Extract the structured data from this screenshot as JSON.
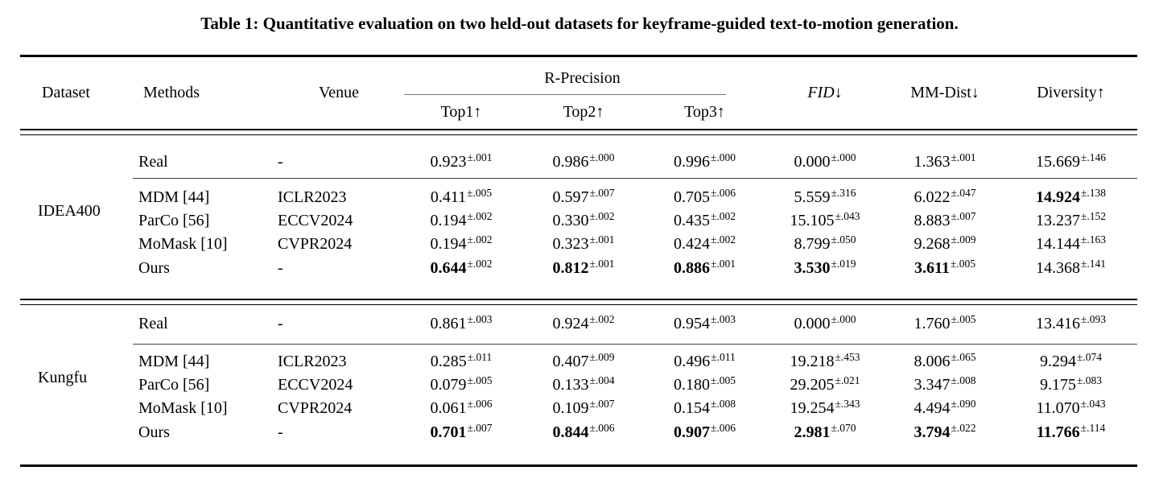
{
  "title": "Table 1: Quantitative evaluation on two held-out datasets for keyframe-guided text-to-motion generation.",
  "header": {
    "dataset": "Dataset",
    "methods": "Methods",
    "venue": "Venue",
    "r_precision": "R-Precision",
    "top1": "Top1↑",
    "top2": "Top2↑",
    "top3": "Top3↑",
    "fid_name": "FID",
    "fid_arrow": "↓",
    "mm_dist": "MM-Dist↓",
    "diversity": "Diversity↑"
  },
  "sections": [
    {
      "dataset": "IDEA400",
      "rows": [
        {
          "method": "Real",
          "venue": "-",
          "values": [
            {
              "v": "0.923",
              "pm": "±.001"
            },
            {
              "v": "0.986",
              "pm": "±.000"
            },
            {
              "v": "0.996",
              "pm": "±.000"
            },
            {
              "v": "0.000",
              "pm": "±.000"
            },
            {
              "v": "1.363",
              "pm": "±.001"
            },
            {
              "v": "15.669",
              "pm": "±.146"
            }
          ]
        },
        {
          "method": "MDM [44]",
          "venue": "ICLR2023",
          "values": [
            {
              "v": "0.411",
              "pm": "±.005"
            },
            {
              "v": "0.597",
              "pm": "±.007"
            },
            {
              "v": "0.705",
              "pm": "±.006"
            },
            {
              "v": "5.559",
              "pm": "±.316"
            },
            {
              "v": "6.022",
              "pm": "±.047"
            },
            {
              "v": "14.924",
              "pm": "±.138",
              "bold": true
            }
          ]
        },
        {
          "method": "ParCo [56]",
          "venue": "ECCV2024",
          "values": [
            {
              "v": "0.194",
              "pm": "±.002"
            },
            {
              "v": "0.330",
              "pm": "±.002"
            },
            {
              "v": "0.435",
              "pm": "±.002"
            },
            {
              "v": "15.105",
              "pm": "±.043"
            },
            {
              "v": "8.883",
              "pm": "±.007"
            },
            {
              "v": "13.237",
              "pm": "±.152"
            }
          ]
        },
        {
          "method": "MoMask [10]",
          "venue": "CVPR2024",
          "values": [
            {
              "v": "0.194",
              "pm": "±.002"
            },
            {
              "v": "0.323",
              "pm": "±.001"
            },
            {
              "v": "0.424",
              "pm": "±.002"
            },
            {
              "v": "8.799",
              "pm": "±.050"
            },
            {
              "v": "9.268",
              "pm": "±.009"
            },
            {
              "v": "14.144",
              "pm": "±.163"
            }
          ]
        },
        {
          "method": "Ours",
          "venue": "-",
          "values": [
            {
              "v": "0.644",
              "pm": "±.002",
              "bold": true
            },
            {
              "v": "0.812",
              "pm": "±.001",
              "bold": true
            },
            {
              "v": "0.886",
              "pm": "±.001",
              "bold": true
            },
            {
              "v": "3.530",
              "pm": "±.019",
              "bold": true
            },
            {
              "v": "3.611",
              "pm": "±.005",
              "bold": true
            },
            {
              "v": "14.368",
              "pm": "±.141"
            }
          ]
        }
      ]
    },
    {
      "dataset": "Kungfu",
      "rows": [
        {
          "method": "Real",
          "venue": "-",
          "values": [
            {
              "v": "0.861",
              "pm": "±.003"
            },
            {
              "v": "0.924",
              "pm": "±.002"
            },
            {
              "v": "0.954",
              "pm": "±.003"
            },
            {
              "v": "0.000",
              "pm": "±.000"
            },
            {
              "v": "1.760",
              "pm": "±.005"
            },
            {
              "v": "13.416",
              "pm": "±.093"
            }
          ]
        },
        {
          "method": "MDM [44]",
          "venue": "ICLR2023",
          "values": [
            {
              "v": "0.285",
              "pm": "±.011"
            },
            {
              "v": "0.407",
              "pm": "±.009"
            },
            {
              "v": "0.496",
              "pm": "±.011"
            },
            {
              "v": "19.218",
              "pm": "±.453"
            },
            {
              "v": "8.006",
              "pm": "±.065"
            },
            {
              "v": "9.294",
              "pm": "±.074"
            }
          ]
        },
        {
          "method": "ParCo [56]",
          "venue": "ECCV2024",
          "values": [
            {
              "v": "0.079",
              "pm": "±.005"
            },
            {
              "v": "0.133",
              "pm": "±.004"
            },
            {
              "v": "0.180",
              "pm": "±.005"
            },
            {
              "v": "29.205",
              "pm": "±.021"
            },
            {
              "v": "3.347",
              "pm": "±.008"
            },
            {
              "v": "9.175",
              "pm": "±.083"
            }
          ]
        },
        {
          "method": "MoMask [10]",
          "venue": "CVPR2024",
          "values": [
            {
              "v": "0.061",
              "pm": "±.006"
            },
            {
              "v": "0.109",
              "pm": "±.007"
            },
            {
              "v": "0.154",
              "pm": "±.008"
            },
            {
              "v": "19.254",
              "pm": "±.343"
            },
            {
              "v": "4.494",
              "pm": "±.090"
            },
            {
              "v": "11.070",
              "pm": "±.043"
            }
          ]
        },
        {
          "method": "Ours",
          "venue": "-",
          "values": [
            {
              "v": "0.701",
              "pm": "±.007",
              "bold": true
            },
            {
              "v": "0.844",
              "pm": "±.006",
              "bold": true
            },
            {
              "v": "0.907",
              "pm": "±.006",
              "bold": true
            },
            {
              "v": "2.981",
              "pm": "±.070",
              "bold": true
            },
            {
              "v": "3.794",
              "pm": "±.022",
              "bold": true
            },
            {
              "v": "11.766",
              "pm": "±.114",
              "bold": true
            }
          ]
        }
      ]
    }
  ]
}
